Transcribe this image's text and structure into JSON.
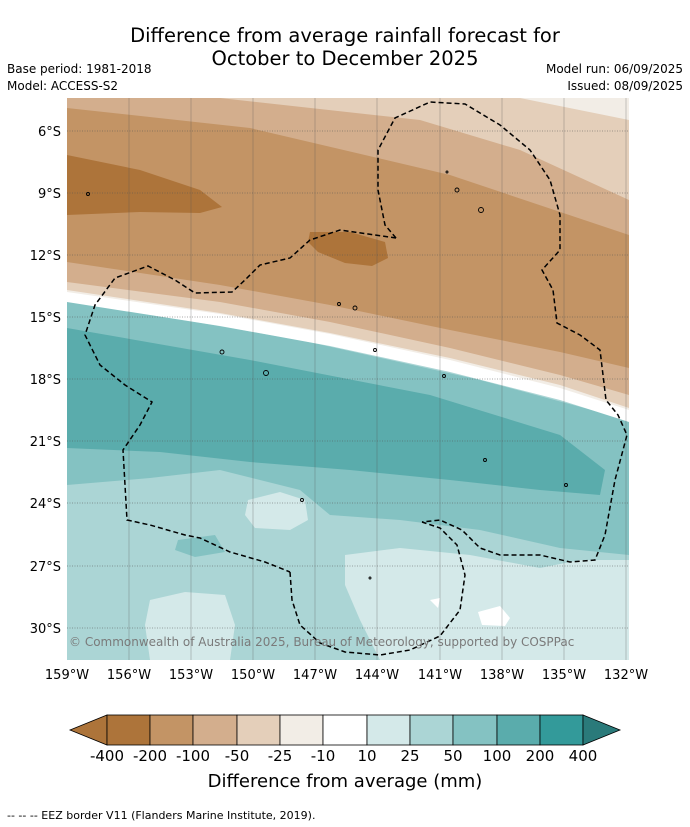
{
  "header": {
    "title_line1": "Difference from average rainfall forecast for",
    "title_line2": "October to December 2025",
    "base_period": "Base period: 1981-2018",
    "model": "Model: ACCESS-S2",
    "model_run": "Model run: 06/09/2025",
    "issued": "Issued: 08/09/2025"
  },
  "map": {
    "lat_labels": [
      "6°S",
      "9°S",
      "12°S",
      "15°S",
      "18°S",
      "21°S",
      "24°S",
      "27°S",
      "30°S"
    ],
    "lon_labels": [
      "159°W",
      "156°W",
      "153°W",
      "150°W",
      "147°W",
      "144°W",
      "141°W",
      "138°W",
      "135°W",
      "132°W"
    ],
    "copyright": "© Commonwealth of Australia 2025, Bureau of Meteorology, supported by COSPPac",
    "colors": {
      "dry_400": "#ad743a",
      "dry_200": "#c39465",
      "dry_100": "#d3ae8d",
      "dry_50": "#e4cfba",
      "dry_25": "#f2ede6",
      "neutral": "#ffffff",
      "wet_25": "#d4e9e9",
      "wet_50": "#abd5d5",
      "wet_100": "#84c2c2",
      "wet_200": "#5aacac",
      "wet_400": "#339a9a",
      "wet_extreme": "#2a7a7a"
    }
  },
  "colorbar": {
    "ticks": [
      "-400",
      "-200",
      "-100",
      "-50",
      "-25",
      "-10",
      "10",
      "25",
      "50",
      "100",
      "200",
      "400"
    ],
    "title": "Difference from average (mm)"
  },
  "footnote": "--  --  -- EEZ border V11 (Flanders Marine Institute, 2019)."
}
